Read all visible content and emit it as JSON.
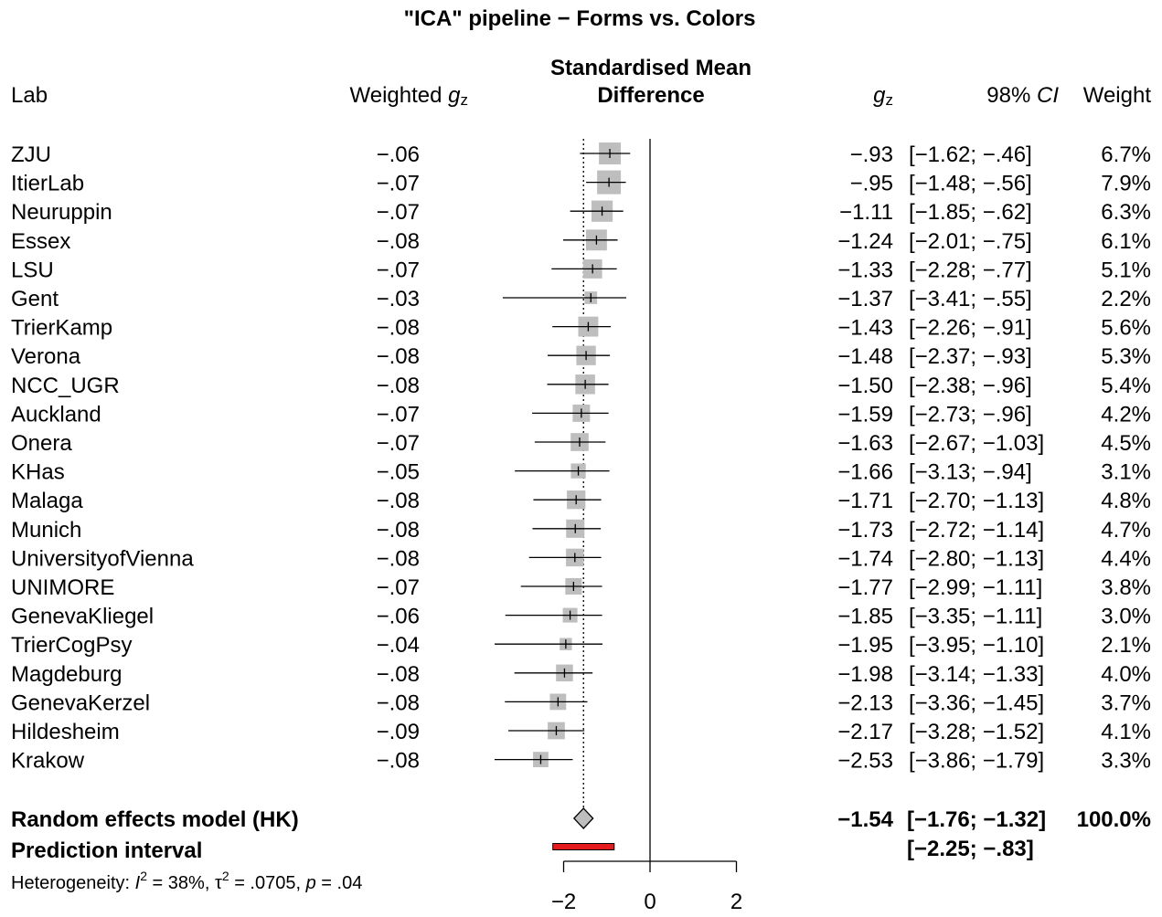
{
  "chart_data": {
    "type": "forest",
    "title": "\"ICA\" pipeline − Forms vs. Colors",
    "columns": {
      "lab": "Lab",
      "weighted_prefix": "Weighted ",
      "weighted_var": "g",
      "weighted_sub": "z",
      "smd_line1": "Standardised Mean",
      "smd_line2": "Difference",
      "g_var": "g",
      "g_sub": "z",
      "ci_prefix": "98% ",
      "ci_italic": "CI",
      "weight": "Weight"
    },
    "xlim": [
      -2,
      2
    ],
    "x_ticks": [
      -2,
      0,
      2
    ],
    "x_tick_labels": [
      "−2",
      "0",
      "2"
    ],
    "studies": [
      {
        "lab": "ZJU",
        "weighted": "−.06",
        "g": -0.93,
        "lower": -1.62,
        "upper": -0.46,
        "g_text": "−.93",
        "ci_text": "[−1.62; −.46]",
        "weight": 6.7,
        "weight_text": "6.7%"
      },
      {
        "lab": "ItierLab",
        "weighted": "−.07",
        "g": -0.95,
        "lower": -1.48,
        "upper": -0.56,
        "g_text": "−.95",
        "ci_text": "[−1.48; −.56]",
        "weight": 7.9,
        "weight_text": "7.9%"
      },
      {
        "lab": "Neuruppin",
        "weighted": "−.07",
        "g": -1.11,
        "lower": -1.85,
        "upper": -0.62,
        "g_text": "−1.11",
        "ci_text": "[−1.85; −.62]",
        "weight": 6.3,
        "weight_text": "6.3%"
      },
      {
        "lab": "Essex",
        "weighted": "−.08",
        "g": -1.24,
        "lower": -2.01,
        "upper": -0.75,
        "g_text": "−1.24",
        "ci_text": "[−2.01; −.75]",
        "weight": 6.1,
        "weight_text": "6.1%"
      },
      {
        "lab": "LSU",
        "weighted": "−.07",
        "g": -1.33,
        "lower": -2.28,
        "upper": -0.77,
        "g_text": "−1.33",
        "ci_text": "[−2.28; −.77]",
        "weight": 5.1,
        "weight_text": "5.1%"
      },
      {
        "lab": "Gent",
        "weighted": "−.03",
        "g": -1.37,
        "lower": -3.41,
        "upper": -0.55,
        "g_text": "−1.37",
        "ci_text": "[−3.41; −.55]",
        "weight": 2.2,
        "weight_text": "2.2%"
      },
      {
        "lab": "TrierKamp",
        "weighted": "−.08",
        "g": -1.43,
        "lower": -2.26,
        "upper": -0.91,
        "g_text": "−1.43",
        "ci_text": "[−2.26; −.91]",
        "weight": 5.6,
        "weight_text": "5.6%"
      },
      {
        "lab": "Verona",
        "weighted": "−.08",
        "g": -1.48,
        "lower": -2.37,
        "upper": -0.93,
        "g_text": "−1.48",
        "ci_text": "[−2.37; −.93]",
        "weight": 5.3,
        "weight_text": "5.3%"
      },
      {
        "lab": "NCC_UGR",
        "weighted": "−.08",
        "g": -1.5,
        "lower": -2.38,
        "upper": -0.96,
        "g_text": "−1.50",
        "ci_text": "[−2.38; −.96]",
        "weight": 5.4,
        "weight_text": "5.4%"
      },
      {
        "lab": "Auckland",
        "weighted": "−.07",
        "g": -1.59,
        "lower": -2.73,
        "upper": -0.96,
        "g_text": "−1.59",
        "ci_text": "[−2.73; −.96]",
        "weight": 4.2,
        "weight_text": "4.2%"
      },
      {
        "lab": "Onera",
        "weighted": "−.07",
        "g": -1.63,
        "lower": -2.67,
        "upper": -1.03,
        "g_text": "−1.63",
        "ci_text": "[−2.67; −1.03]",
        "weight": 4.5,
        "weight_text": "4.5%"
      },
      {
        "lab": "KHas",
        "weighted": "−.05",
        "g": -1.66,
        "lower": -3.13,
        "upper": -0.94,
        "g_text": "−1.66",
        "ci_text": "[−3.13; −.94]",
        "weight": 3.1,
        "weight_text": "3.1%"
      },
      {
        "lab": "Malaga",
        "weighted": "−.08",
        "g": -1.71,
        "lower": -2.7,
        "upper": -1.13,
        "g_text": "−1.71",
        "ci_text": "[−2.70; −1.13]",
        "weight": 4.8,
        "weight_text": "4.8%"
      },
      {
        "lab": "Munich",
        "weighted": "−.08",
        "g": -1.73,
        "lower": -2.72,
        "upper": -1.14,
        "g_text": "−1.73",
        "ci_text": "[−2.72; −1.14]",
        "weight": 4.7,
        "weight_text": "4.7%"
      },
      {
        "lab": "UniversityofVienna",
        "weighted": "−.08",
        "g": -1.74,
        "lower": -2.8,
        "upper": -1.13,
        "g_text": "−1.74",
        "ci_text": "[−2.80; −1.13]",
        "weight": 4.4,
        "weight_text": "4.4%"
      },
      {
        "lab": "UNIMORE",
        "weighted": "−.07",
        "g": -1.77,
        "lower": -2.99,
        "upper": -1.11,
        "g_text": "−1.77",
        "ci_text": "[−2.99; −1.11]",
        "weight": 3.8,
        "weight_text": "3.8%"
      },
      {
        "lab": "GenevaKliegel",
        "weighted": "−.06",
        "g": -1.85,
        "lower": -3.35,
        "upper": -1.11,
        "g_text": "−1.85",
        "ci_text": "[−3.35; −1.11]",
        "weight": 3.0,
        "weight_text": "3.0%"
      },
      {
        "lab": "TrierCogPsy",
        "weighted": "−.04",
        "g": -1.95,
        "lower": -3.95,
        "upper": -1.1,
        "g_text": "−1.95",
        "ci_text": "[−3.95; −1.10]",
        "weight": 2.1,
        "weight_text": "2.1%"
      },
      {
        "lab": "Magdeburg",
        "weighted": "−.08",
        "g": -1.98,
        "lower": -3.14,
        "upper": -1.33,
        "g_text": "−1.98",
        "ci_text": "[−3.14; −1.33]",
        "weight": 4.0,
        "weight_text": "4.0%"
      },
      {
        "lab": "GenevaKerzel",
        "weighted": "−.08",
        "g": -2.13,
        "lower": -3.36,
        "upper": -1.45,
        "g_text": "−2.13",
        "ci_text": "[−3.36; −1.45]",
        "weight": 3.7,
        "weight_text": "3.7%"
      },
      {
        "lab": "Hildesheim",
        "weighted": "−.09",
        "g": -2.17,
        "lower": -3.28,
        "upper": -1.52,
        "g_text": "−2.17",
        "ci_text": "[−3.28; −1.52]",
        "weight": 4.1,
        "weight_text": "4.1%"
      },
      {
        "lab": "Krakow",
        "weighted": "−.08",
        "g": -2.53,
        "lower": -3.86,
        "upper": -1.79,
        "g_text": "−2.53",
        "ci_text": "[−3.86; −1.79]",
        "weight": 3.3,
        "weight_text": "3.3%"
      }
    ],
    "random_effects": {
      "label": "Random effects model (HK)",
      "estimate": -1.54,
      "lower": -1.76,
      "upper": -1.32,
      "estimate_text": "−1.54",
      "ci_text": "[−1.76; −1.32]",
      "weight_text": "100.0%"
    },
    "prediction_interval": {
      "label": "Prediction interval",
      "lower": -2.25,
      "upper": -0.83,
      "ci_text": "[−2.25; −.83]"
    },
    "heterogeneity": {
      "prefix": "Heterogeneity: ",
      "i2_symbol": "I",
      "i2_value": " = 38%, ",
      "tau2_symbol": "τ",
      "tau2_value": " = .0705, ",
      "p_symbol": "p",
      "p_value": " = .04"
    },
    "colors": {
      "box": "#bebebe",
      "diamond": "#bebebe",
      "prediction": "#e41a1c",
      "lines": "#000000"
    }
  }
}
